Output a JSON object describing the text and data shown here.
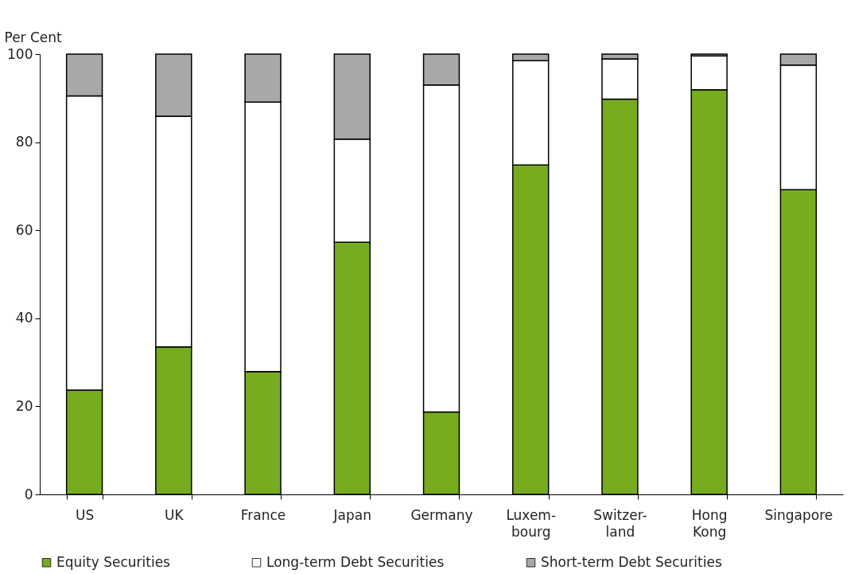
{
  "chart_data": {
    "type": "bar",
    "stacked": true,
    "ylabel": "Per Cent",
    "categories": [
      "US",
      "UK",
      "France",
      "Japan",
      "Germany",
      "Luxem-bourg",
      "Switzer-land",
      "Hong Kong",
      "Singapore"
    ],
    "series": [
      {
        "name": "Equity Securities",
        "color": "#77ac1e",
        "values": [
          23.7,
          33.5,
          27.9,
          57.3,
          18.7,
          74.8,
          89.8,
          91.9,
          69.2
        ]
      },
      {
        "name": "Long-term Debt Securities",
        "color": "#ffffff",
        "values": [
          66.8,
          52.4,
          61.2,
          23.4,
          74.3,
          23.7,
          9.1,
          7.7,
          28.3
        ]
      },
      {
        "name": "Short-term Debt Securities",
        "color": "#a8a8a8",
        "values": [
          9.5,
          14.1,
          10.9,
          19.3,
          7.0,
          1.5,
          1.1,
          0.4,
          2.5
        ]
      }
    ],
    "ylim": [
      0,
      100
    ],
    "yticks": [
      0,
      20,
      40,
      60,
      80,
      100
    ],
    "grid": false,
    "legend": "bottom"
  }
}
